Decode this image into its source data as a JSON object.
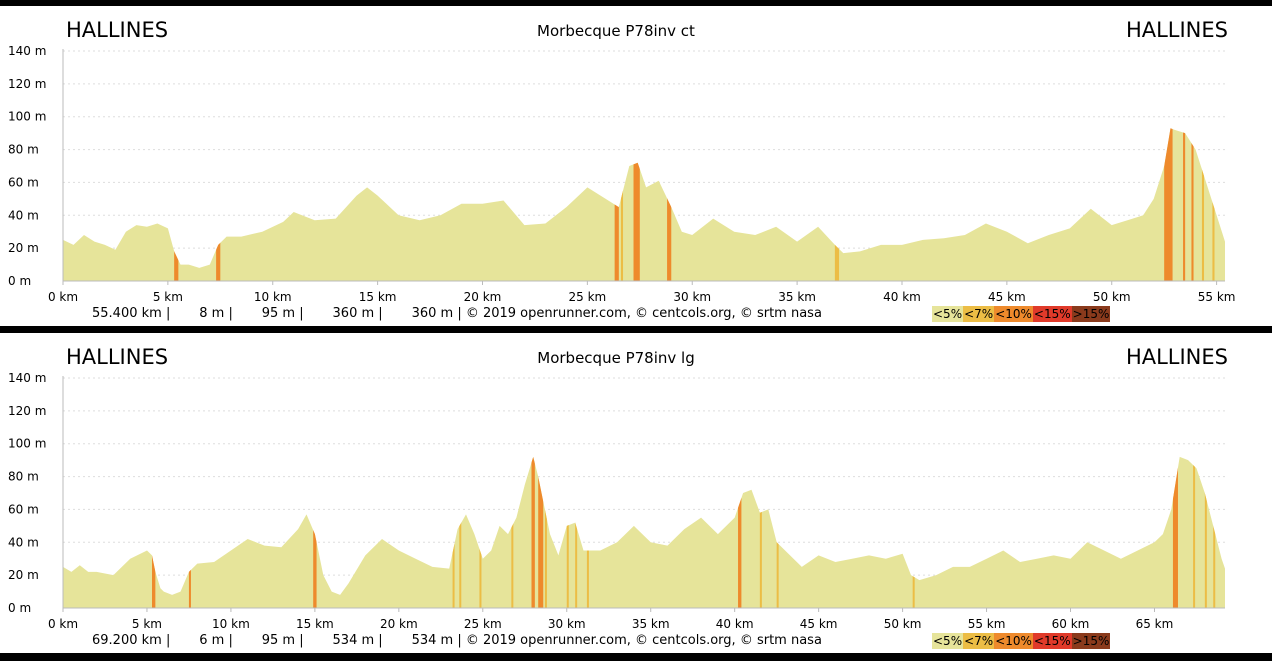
{
  "colors": {
    "fill": "#e6e49a",
    "grid": "#dddddd",
    "slope": [
      "#e6e49a",
      "#ecbd45",
      "#ee8a2c",
      "#e03a2a",
      "#8a3a1c"
    ]
  },
  "legend": [
    "<5%",
    "<7%",
    "<10%",
    "<15%",
    ">15%"
  ],
  "charts": [
    {
      "start_label": "HALLINES",
      "end_label": "HALLINES",
      "title": "Morbecque P78inv ct",
      "stats": "55.400 km |       8 m |       95 m |       360 m |       360 m | © 2019 openrunner.com, © centcols.org, © srtm nasa",
      "y_ticks": [
        "140 m",
        "120 m",
        "100 m",
        "80 m",
        "60 m",
        "40 m",
        "20 m",
        "0 m"
      ],
      "x_ticks": [
        "0 km",
        "5 km",
        "10 km",
        "15 km",
        "20 km",
        "25 km",
        "30 km",
        "35 km",
        "40 km",
        "45 km",
        "50 km",
        "55 km"
      ]
    },
    {
      "start_label": "HALLINES",
      "end_label": "HALLINES",
      "title": "Morbecque P78inv lg",
      "stats": "69.200 km |       6 m |       95 m |       534 m |       534 m | © 2019 openrunner.com, © centcols.org, © srtm nasa",
      "y_ticks": [
        "140 m",
        "120 m",
        "100 m",
        "80 m",
        "60 m",
        "40 m",
        "20 m",
        "0 m"
      ],
      "x_ticks": [
        "0 km",
        "5 km",
        "10 km",
        "15 km",
        "20 km",
        "25 km",
        "30 km",
        "35 km",
        "40 km",
        "45 km",
        "50 km",
        "55 km",
        "60 km",
        "65 km"
      ]
    }
  ],
  "chart_data": [
    {
      "type": "area",
      "title": "Morbecque P78inv ct",
      "xlabel": "",
      "ylabel": "",
      "xlim": [
        0,
        55.4
      ],
      "ylim": [
        0,
        140
      ],
      "grid": true,
      "x_step_km": 5,
      "series": [
        {
          "x": [
            0,
            0.5,
            1,
            1.5,
            2,
            2.5,
            3,
            3.5,
            4,
            4.5,
            5,
            5.3,
            5.6,
            6,
            6.5,
            7,
            7.4,
            7.8,
            8.5,
            9.5,
            10.5,
            11,
            12,
            13,
            14,
            14.5,
            15,
            16,
            17,
            18,
            19,
            20,
            21,
            22,
            23,
            24,
            25,
            26,
            26.5,
            27,
            27.4,
            27.8,
            28.4,
            29,
            29.5,
            30,
            31,
            32,
            33,
            34,
            35,
            36,
            36.8,
            37.2,
            38,
            39,
            40,
            41,
            42,
            43,
            44,
            45,
            46,
            47,
            48,
            49,
            50,
            51,
            51.5,
            52,
            52.5,
            52.8,
            53,
            53.5,
            54,
            54.5,
            55,
            55.4
          ],
          "y": [
            25,
            22,
            28,
            24,
            22,
            19,
            30,
            34,
            33,
            35,
            32,
            18,
            10,
            10,
            8,
            10,
            22,
            27,
            27,
            30,
            36,
            42,
            37,
            38,
            52,
            57,
            52,
            40,
            37,
            40,
            47,
            47,
            49,
            34,
            35,
            45,
            57,
            49,
            45,
            70,
            72,
            57,
            61,
            45,
            30,
            28,
            38,
            30,
            28,
            33,
            24,
            33,
            22,
            17,
            18,
            22,
            22,
            25,
            26,
            28,
            35,
            30,
            23,
            28,
            32,
            44,
            34,
            38,
            40,
            50,
            70,
            93,
            92,
            90,
            80,
            60,
            40,
            24
          ]
        }
      ],
      "slopes": [
        {
          "from": 5.3,
          "to": 5.5,
          "class": 2
        },
        {
          "from": 7.3,
          "to": 7.5,
          "class": 2
        },
        {
          "from": 26.3,
          "to": 26.5,
          "class": 2
        },
        {
          "from": 26.6,
          "to": 26.7,
          "class": 1
        },
        {
          "from": 27.2,
          "to": 27.5,
          "class": 2
        },
        {
          "from": 28.8,
          "to": 29.0,
          "class": 2
        },
        {
          "from": 36.8,
          "to": 37.0,
          "class": 1
        },
        {
          "from": 52.5,
          "to": 52.9,
          "class": 2
        },
        {
          "from": 53.4,
          "to": 53.5,
          "class": 2
        },
        {
          "from": 53.8,
          "to": 53.9,
          "class": 2
        },
        {
          "from": 54.3,
          "to": 54.4,
          "class": 1
        },
        {
          "from": 54.8,
          "to": 54.9,
          "class": 1
        }
      ]
    },
    {
      "type": "area",
      "title": "Morbecque P78inv lg",
      "xlabel": "",
      "ylabel": "",
      "xlim": [
        0,
        69.2
      ],
      "ylim": [
        0,
        140
      ],
      "grid": true,
      "x_step_km": 5,
      "series": [
        {
          "x": [
            0,
            0.5,
            1,
            1.5,
            2,
            3,
            4,
            5,
            5.3,
            5.5,
            5.8,
            6,
            6.5,
            7,
            7.5,
            8,
            9,
            10,
            11,
            12,
            13,
            14,
            14.5,
            15,
            15.5,
            16,
            16.5,
            17,
            18,
            19,
            20,
            21,
            22,
            23,
            23.5,
            24,
            24.5,
            25,
            25.5,
            26,
            26.5,
            27,
            27.5,
            28,
            28.3,
            28.6,
            29,
            29.5,
            30,
            30.5,
            31,
            32,
            33,
            34,
            35,
            36,
            37,
            38,
            39,
            40,
            40.5,
            41,
            41.5,
            42,
            42.5,
            43,
            44,
            45,
            46,
            47,
            48,
            49,
            50,
            50.5,
            51,
            52,
            53,
            54,
            55,
            56,
            57,
            58,
            59,
            60,
            61,
            62,
            63,
            64,
            65,
            65.5,
            66,
            66.5,
            67,
            67.5,
            68,
            68.5,
            69,
            69.2
          ],
          "y": [
            25,
            22,
            26,
            22,
            22,
            20,
            30,
            35,
            32,
            22,
            12,
            10,
            8,
            10,
            22,
            27,
            28,
            35,
            42,
            38,
            37,
            48,
            57,
            45,
            20,
            10,
            8,
            15,
            32,
            42,
            35,
            30,
            25,
            24,
            48,
            57,
            45,
            30,
            35,
            50,
            45,
            55,
            75,
            92,
            80,
            65,
            45,
            32,
            50,
            52,
            35,
            35,
            40,
            50,
            40,
            38,
            48,
            55,
            45,
            55,
            70,
            72,
            58,
            60,
            40,
            35,
            25,
            32,
            28,
            30,
            32,
            30,
            33,
            20,
            17,
            20,
            25,
            25,
            30,
            35,
            28,
            30,
            32,
            30,
            40,
            35,
            30,
            35,
            40,
            45,
            60,
            92,
            90,
            85,
            70,
            50,
            30,
            24
          ]
        }
      ],
      "slopes": [
        {
          "from": 5.3,
          "to": 5.5,
          "class": 2
        },
        {
          "from": 7.5,
          "to": 7.6,
          "class": 2
        },
        {
          "from": 14.9,
          "to": 15.1,
          "class": 2
        },
        {
          "from": 23.2,
          "to": 23.3,
          "class": 1
        },
        {
          "from": 23.6,
          "to": 23.7,
          "class": 1
        },
        {
          "from": 24.8,
          "to": 24.9,
          "class": 1
        },
        {
          "from": 26.7,
          "to": 26.8,
          "class": 1
        },
        {
          "from": 27.9,
          "to": 28.1,
          "class": 2
        },
        {
          "from": 28.3,
          "to": 28.6,
          "class": 2
        },
        {
          "from": 28.7,
          "to": 28.8,
          "class": 1
        },
        {
          "from": 30.0,
          "to": 30.1,
          "class": 1
        },
        {
          "from": 30.5,
          "to": 30.6,
          "class": 1
        },
        {
          "from": 31.2,
          "to": 31.3,
          "class": 1
        },
        {
          "from": 40.2,
          "to": 40.4,
          "class": 2
        },
        {
          "from": 41.5,
          "to": 41.6,
          "class": 1
        },
        {
          "from": 42.5,
          "to": 42.6,
          "class": 1
        },
        {
          "from": 50.6,
          "to": 50.7,
          "class": 1
        },
        {
          "from": 66.1,
          "to": 66.4,
          "class": 2
        },
        {
          "from": 67.3,
          "to": 67.4,
          "class": 1
        },
        {
          "from": 68.0,
          "to": 68.1,
          "class": 1
        },
        {
          "from": 68.5,
          "to": 68.6,
          "class": 1
        }
      ]
    }
  ]
}
